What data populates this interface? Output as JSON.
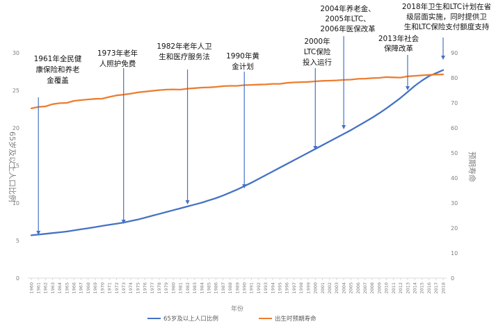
{
  "chart_data": {
    "type": "line",
    "x": [
      1960,
      1961,
      1962,
      1963,
      1964,
      1965,
      1966,
      1967,
      1968,
      1969,
      1970,
      1971,
      1972,
      1973,
      1974,
      1975,
      1976,
      1977,
      1978,
      1979,
      1980,
      1981,
      1982,
      1983,
      1984,
      1985,
      1986,
      1987,
      1988,
      1989,
      1990,
      1991,
      1992,
      1993,
      1994,
      1995,
      1996,
      1997,
      1998,
      1999,
      2000,
      2001,
      2002,
      2003,
      2004,
      2005,
      2006,
      2007,
      2008,
      2009,
      2010,
      2011,
      2012,
      2013,
      2014,
      2015,
      2016,
      2017,
      2018
    ],
    "x_tick_labels": [
      "1960",
      "1961",
      "1962",
      "1963",
      "1964",
      "1965",
      "1966",
      "1967",
      "1968",
      "1969",
      "1970",
      "1971",
      "1972",
      "1973",
      "1974",
      "1975",
      "1976",
      "1977",
      "1978",
      "1979",
      "1980",
      "1981",
      "1982",
      "1983",
      "1984",
      "1985",
      "1986",
      "1987",
      "1988",
      "1989",
      "1990",
      "1991",
      "1992",
      "1993",
      "1994",
      "1995",
      "1996",
      "1997",
      "1998",
      "1999",
      "2000",
      "2001",
      "2002",
      "2003",
      "2004",
      "2005",
      "2006",
      "2007",
      "2008",
      "2009",
      "2010",
      "2011",
      "2012",
      "2013",
      "2014",
      "2015",
      "2016",
      "2017",
      "2018"
    ],
    "xlabel": "年份",
    "ylabel_left": "65岁及以上人口比例",
    "ylabel_right": "预期寿命",
    "ylim_left": [
      0,
      30
    ],
    "ylim_right": [
      0,
      90
    ],
    "yticks_left": [
      0,
      5,
      10,
      15,
      20,
      25,
      30
    ],
    "yticks_right": [
      0,
      10,
      20,
      30,
      40,
      50,
      60,
      70,
      80,
      90
    ],
    "grid": false,
    "legend_position": "bottom",
    "series": [
      {
        "name": "65岁及以上人口比例",
        "axis": "left",
        "color": "#4472c4",
        "values": [
          5.7,
          5.8,
          5.9,
          6.0,
          6.1,
          6.2,
          6.35,
          6.5,
          6.65,
          6.8,
          6.95,
          7.1,
          7.25,
          7.4,
          7.6,
          7.8,
          8.05,
          8.3,
          8.55,
          8.8,
          9.05,
          9.3,
          9.55,
          9.8,
          10.05,
          10.35,
          10.65,
          11.0,
          11.4,
          11.8,
          12.25,
          12.7,
          13.2,
          13.7,
          14.2,
          14.7,
          15.2,
          15.7,
          16.2,
          16.7,
          17.2,
          17.7,
          18.2,
          18.7,
          19.2,
          19.7,
          20.25,
          20.8,
          21.35,
          21.95,
          22.6,
          23.3,
          24.0,
          24.8,
          25.6,
          26.3,
          26.9,
          27.3,
          27.7
        ]
      },
      {
        "name": "出生时预期寿命",
        "axis": "right",
        "color": "#ed7d31",
        "values": [
          67.8,
          68.4,
          68.6,
          69.5,
          69.9,
          70.0,
          70.8,
          71.1,
          71.4,
          71.6,
          71.7,
          72.4,
          73.0,
          73.3,
          73.7,
          74.2,
          74.5,
          74.8,
          75.1,
          75.3,
          75.4,
          75.3,
          75.7,
          75.9,
          76.1,
          76.2,
          76.4,
          76.7,
          76.8,
          76.8,
          77.1,
          77.2,
          77.3,
          77.4,
          77.6,
          77.6,
          78.0,
          78.2,
          78.3,
          78.4,
          78.6,
          78.8,
          78.9,
          79.0,
          79.2,
          79.3,
          79.6,
          79.7,
          79.9,
          80.0,
          80.3,
          80.2,
          80.1,
          80.6,
          80.8,
          81.0,
          81.2,
          81.3,
          81.4
        ]
      }
    ],
    "annotations": [
      {
        "year": 1961,
        "lines": [
          "1961年全民健",
          "康保险和养老",
          "金覆盖"
        ]
      },
      {
        "year": 1973,
        "lines": [
          "1973年老年",
          "人照护免费"
        ]
      },
      {
        "year": 1982,
        "lines": [
          "1982年老年人卫",
          "生和医疗服务法"
        ]
      },
      {
        "year": 1990,
        "lines": [
          "1990年黄",
          "金计划"
        ]
      },
      {
        "year": 2000,
        "lines": [
          "2000年",
          "LTC保险",
          "投入运行"
        ]
      },
      {
        "year": 2004,
        "lines": [
          "2004年养老金、",
          "2005年LTC、",
          "2006年医保改革"
        ]
      },
      {
        "year": 2013,
        "lines": [
          "2013年社会",
          "保障改革"
        ]
      },
      {
        "year": 2018,
        "lines": [
          "2018年卫生和LTC计划在省",
          "级层面实施，同时提供卫",
          "生和LTC保险支付额度支持"
        ]
      }
    ]
  }
}
